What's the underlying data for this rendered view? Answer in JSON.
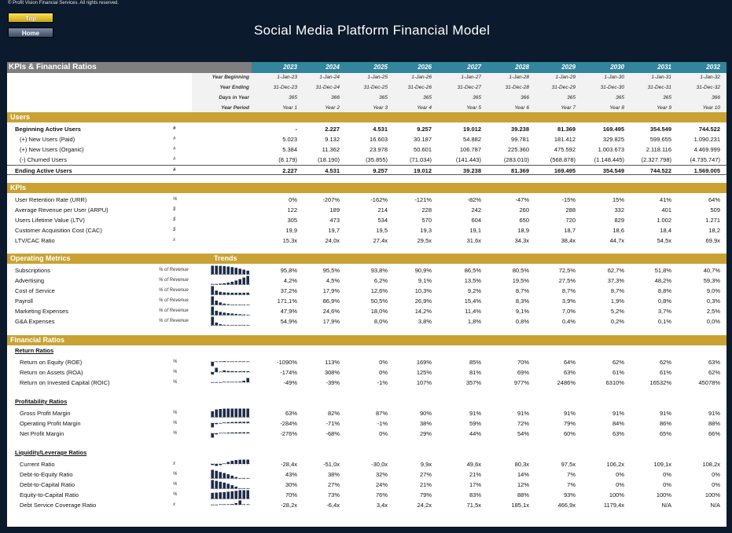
{
  "copyright": "© Profit Vision Financial Services. All rights reserved.",
  "nav": {
    "top_label": "Top",
    "home_label": "Home"
  },
  "title": "Social Media Platform Financial Model",
  "header": {
    "label": "KPIs & Financial Ratios",
    "years": [
      "2023",
      "2024",
      "2025",
      "2026",
      "2027",
      "2028",
      "2029",
      "2030",
      "2031",
      "2032"
    ]
  },
  "timeline": [
    {
      "label": "Year Beginning",
      "values": [
        "1-Jan-23",
        "1-Jan-24",
        "1-Jan-25",
        "1-Jan-26",
        "1-Jan-27",
        "1-Jan-28",
        "1-Jan-29",
        "1-Jan-30",
        "1-Jan-31",
        "1-Jan-32"
      ]
    },
    {
      "label": "Year Ending",
      "values": [
        "31-Dec-23",
        "31-Dec-24",
        "31-Dec-25",
        "31-Dec-26",
        "31-Dec-27",
        "31-Dec-28",
        "31-Dec-29",
        "31-Dec-30",
        "31-Dec-31",
        "31-Dec-32"
      ]
    },
    {
      "label": "Days in Year",
      "values": [
        "365",
        "366",
        "365",
        "365",
        "365",
        "366",
        "365",
        "365",
        "365",
        "366"
      ]
    },
    {
      "label": "Year Period",
      "values": [
        "Year 1",
        "Year 2",
        "Year 3",
        "Year 4",
        "Year 5",
        "Year 6",
        "Year 7",
        "Year 8",
        "Year 9",
        "Year 10"
      ]
    }
  ],
  "sections": {
    "users": "Users",
    "kpis": "KPIs",
    "operating": "Operating Metrics",
    "trends": "Trends",
    "ratios": "Financial Ratios"
  },
  "users_rows": [
    {
      "label": "Beginning Active Users",
      "unit": "#",
      "bold": true,
      "values": [
        "-",
        "2.227",
        "4.531",
        "9.257",
        "19.012",
        "39.238",
        "81.369",
        "169.495",
        "354.549",
        "744.522"
      ]
    },
    {
      "label": "(+) New Users (Paid)",
      "unit": "#",
      "values": [
        "5.023",
        "9.132",
        "16.603",
        "30.187",
        "54.882",
        "99.781",
        "181.412",
        "329.825",
        "599.655",
        "1.090.231"
      ]
    },
    {
      "label": "(+) New Users (Organic)",
      "unit": "#",
      "values": [
        "5.384",
        "11.362",
        "23.978",
        "50.601",
        "106.787",
        "225.360",
        "475.592",
        "1.003.673",
        "2.118.116",
        "4.469.999"
      ]
    },
    {
      "label": "(-) Churned Users",
      "unit": "#",
      "values": [
        "(8.179)",
        "(18.190)",
        "(35.855)",
        "(71.034)",
        "(141.443)",
        "(283.010)",
        "(568.878)",
        "(1.148.445)",
        "(2.327.798)",
        "(4.735.747)"
      ]
    },
    {
      "label": "Ending Active Users",
      "unit": "#",
      "bold": true,
      "values": [
        "2.227",
        "4.531",
        "9.257",
        "19.012",
        "39.238",
        "81.369",
        "169.495",
        "354.549",
        "744.522",
        "1.569.005"
      ]
    }
  ],
  "kpi_rows": [
    {
      "label": "User Retention Rate (URR)",
      "unit": "%",
      "values": [
        "0%",
        "-207%",
        "-162%",
        "-121%",
        "-82%",
        "-47%",
        "-15%",
        "15%",
        "41%",
        "64%"
      ]
    },
    {
      "label": "Average Revenue per User (ARPU)",
      "unit": "$",
      "values": [
        "122",
        "189",
        "214",
        "228",
        "242",
        "260",
        "288",
        "332",
        "401",
        "509"
      ]
    },
    {
      "label": "Users Lifetime Value (LTV)",
      "unit": "$",
      "values": [
        "305",
        "473",
        "534",
        "570",
        "604",
        "650",
        "720",
        "829",
        "1.002",
        "1.271"
      ]
    },
    {
      "label": "Customer Acquisition Cost (CAC)",
      "unit": "$",
      "values": [
        "19,9",
        "19,7",
        "19,5",
        "19,3",
        "19,1",
        "18,9",
        "18,7",
        "18,6",
        "18,4",
        "18,2"
      ]
    },
    {
      "label": "LTV/CAC Ratio",
      "unit": "x",
      "values": [
        "15,3x",
        "24,0x",
        "27,4x",
        "29,5x",
        "31,6x",
        "34,3x",
        "38,4x",
        "44,7x",
        "54,5x",
        "69,9x"
      ]
    }
  ],
  "operating_rows": [
    {
      "label": "Subscriptions",
      "unit": "% of Revenue",
      "trend": [
        95.8,
        95.5,
        93.8,
        90.9,
        86.5,
        80.5,
        72.5,
        62.7,
        51.8,
        40.7
      ],
      "values": [
        "95,8%",
        "95,5%",
        "93,8%",
        "90,9%",
        "86,5%",
        "80,5%",
        "72,5%",
        "62,7%",
        "51,8%",
        "40,7%"
      ]
    },
    {
      "label": "Advertising",
      "unit": "% of Revenue",
      "trend": [
        4.2,
        4.5,
        6.2,
        9.1,
        13.5,
        19.5,
        27.5,
        37.3,
        48.2,
        59.3
      ],
      "values": [
        "4,2%",
        "4,5%",
        "6,2%",
        "9,1%",
        "13,5%",
        "19,5%",
        "27,5%",
        "37,3%",
        "48,2%",
        "59,3%"
      ]
    },
    {
      "label": "Cost of Service",
      "unit": "% of Revenue",
      "trend": [
        37.2,
        17.9,
        12.6,
        10.3,
        9.2,
        8.7,
        8.7,
        8.7,
        8.8,
        9.0
      ],
      "values": [
        "37,2%",
        "17,9%",
        "12,6%",
        "10,3%",
        "9,2%",
        "8,7%",
        "8,7%",
        "8,7%",
        "8,8%",
        "9,0%"
      ]
    },
    {
      "label": "Payroll",
      "unit": "% of Revenue",
      "trend": [
        171.1,
        86.9,
        50.5,
        26.9,
        15.4,
        8.3,
        3.9,
        1.9,
        0.8,
        0.3
      ],
      "values": [
        "171,1%",
        "86,9%",
        "50,5%",
        "26,9%",
        "15,4%",
        "8,3%",
        "3,9%",
        "1,9%",
        "0,8%",
        "0,3%"
      ]
    },
    {
      "label": "Marketing Expenses",
      "unit": "% of Revenue",
      "trend": [
        47.9,
        24.6,
        18.0,
        14.2,
        11.4,
        9.1,
        7.0,
        5.2,
        3.7,
        2.5
      ],
      "values": [
        "47,9%",
        "24,6%",
        "18,0%",
        "14,2%",
        "11,4%",
        "9,1%",
        "7,0%",
        "5,2%",
        "3,7%",
        "2,5%"
      ]
    },
    {
      "label": "G&A Expenses",
      "unit": "% of Revenue",
      "trend": [
        54.9,
        17.9,
        8.0,
        3.8,
        1.8,
        0.8,
        0.4,
        0.2,
        0.1,
        0.0
      ],
      "values": [
        "54,9%",
        "17,9%",
        "8,0%",
        "3,8%",
        "1,8%",
        "0,8%",
        "0,4%",
        "0,2%",
        "0,1%",
        "0,0%"
      ]
    }
  ],
  "ratio_groups": [
    {
      "title": "Return Ratios",
      "rows": [
        {
          "label": "Return on Equity (ROE)",
          "unit": "%",
          "trend": [
            -1090,
            113,
            0,
            169,
            85,
            70,
            64,
            62,
            62,
            63
          ],
          "values": [
            "-1090%",
            "113%",
            "0%",
            "169%",
            "85%",
            "70%",
            "64%",
            "62%",
            "62%",
            "63%"
          ]
        },
        {
          "label": "Return on Assets (ROA)",
          "unit": "%",
          "trend": [
            -174,
            308,
            0,
            125,
            81,
            69,
            63,
            61,
            61,
            62
          ],
          "values": [
            "-174%",
            "308%",
            "0%",
            "125%",
            "81%",
            "69%",
            "63%",
            "61%",
            "61%",
            "62%"
          ]
        },
        {
          "label": "Return on Invested Capital (ROIC)",
          "unit": "%",
          "trend": [
            -49,
            -39,
            -1,
            107,
            357,
            977,
            2486,
            6310,
            16532,
            45078
          ],
          "values": [
            "-49%",
            "-39%",
            "-1%",
            "107%",
            "357%",
            "977%",
            "2486%",
            "6310%",
            "16532%",
            "45078%"
          ]
        }
      ]
    },
    {
      "title": "Profitability Ratios",
      "rows": [
        {
          "label": "Gross Profit Margin",
          "unit": "%",
          "trend": [
            63,
            82,
            87,
            90,
            91,
            91,
            91,
            91,
            91,
            91
          ],
          "values": [
            "63%",
            "82%",
            "87%",
            "90%",
            "91%",
            "91%",
            "91%",
            "91%",
            "91%",
            "91%"
          ]
        },
        {
          "label": "Operating Profit Margin",
          "unit": "%",
          "trend": [
            -284,
            -71,
            -1,
            38,
            59,
            72,
            79,
            84,
            86,
            88
          ],
          "values": [
            "-284%",
            "-71%",
            "-1%",
            "38%",
            "59%",
            "72%",
            "79%",
            "84%",
            "86%",
            "88%"
          ]
        },
        {
          "label": "Net Profit Margin",
          "unit": "%",
          "trend": [
            -276,
            -68,
            0,
            29,
            44,
            54,
            60,
            63,
            65,
            66
          ],
          "values": [
            "-276%",
            "-68%",
            "0%",
            "29%",
            "44%",
            "54%",
            "60%",
            "63%",
            "65%",
            "66%"
          ]
        }
      ]
    },
    {
      "title": "Liquidity/Leverage Ratios",
      "rows": [
        {
          "label": "Current Ratio",
          "unit": "x",
          "trend": [
            -28.4,
            -51.0,
            -30.0,
            9.9,
            49.6,
            80.3,
            97.5,
            106.2,
            109.1,
            108.2
          ],
          "values": [
            "-28,4x",
            "-51,0x",
            "-30,0x",
            "9,9x",
            "49,6x",
            "80,3x",
            "97,5x",
            "106,2x",
            "109,1x",
            "108,2x"
          ]
        },
        {
          "label": "Debt-to-Equity Ratio",
          "unit": "%",
          "trend": [
            43,
            38,
            32,
            27,
            21,
            14,
            7,
            0,
            0,
            0
          ],
          "values": [
            "43%",
            "38%",
            "32%",
            "27%",
            "21%",
            "14%",
            "7%",
            "0%",
            "0%",
            "0%"
          ]
        },
        {
          "label": "Debt-to-Capital Ratio",
          "unit": "%",
          "trend": [
            30,
            27,
            24,
            21,
            17,
            12,
            7,
            0,
            0,
            0
          ],
          "values": [
            "30%",
            "27%",
            "24%",
            "21%",
            "17%",
            "12%",
            "7%",
            "0%",
            "0%",
            "0%"
          ]
        },
        {
          "label": "Equity-to-Capital Ratio",
          "unit": "%",
          "trend": [
            70,
            73,
            76,
            79,
            83,
            88,
            93,
            100,
            100,
            100
          ],
          "values": [
            "70%",
            "73%",
            "76%",
            "79%",
            "83%",
            "88%",
            "93%",
            "100%",
            "100%",
            "100%"
          ]
        },
        {
          "label": "Debt Service Coverage Ratio",
          "unit": "x",
          "trend": [
            -28.2,
            -6.4,
            3.4,
            24.2,
            71.5,
            185.1,
            466.9,
            1179.4,
            0,
            0
          ],
          "values": [
            "-28,2x",
            "-6,4x",
            "3,4x",
            "24,2x",
            "71,5x",
            "185,1x",
            "466,9x",
            "1179,4x",
            "N/A",
            "N/A"
          ]
        }
      ]
    }
  ],
  "colors": {
    "background": "#0b1a2c",
    "section": "#c9a233",
    "year_header": "#31859c",
    "label_header": "#7f7f7f",
    "spark": "#1f2d4a"
  }
}
